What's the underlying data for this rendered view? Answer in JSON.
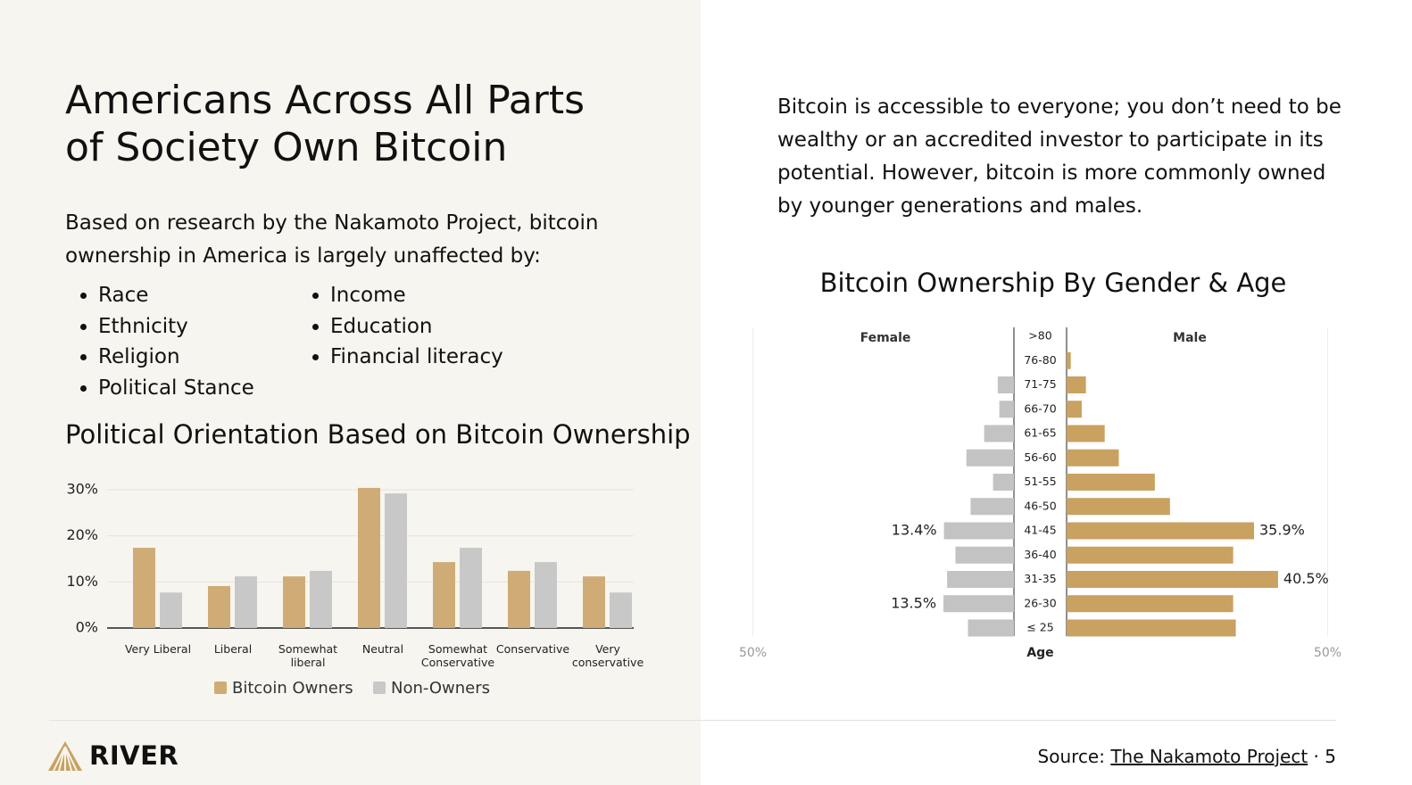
{
  "header": {
    "title": "Americans Across All Parts of Society Own Bitcoin",
    "intro": "Based on research by the Nakamoto Project, bitcoin ownership in America is largely unaffected by:",
    "right_text": "Bitcoin is accessible to everyone; you don’t need to be wealthy or an accredited investor to participate in its potential. However, bitcoin is more commonly owned by younger generations and males."
  },
  "bullets": [
    "Race",
    "Ethnicity",
    "Religion",
    "Political Stance",
    "Income",
    "Education",
    "Financial literacy"
  ],
  "chart_data": [
    {
      "type": "bar",
      "title": "Political Orientation Based on Bitcoin Ownership",
      "categories": [
        "Very Liberal",
        "Liberal",
        "Somewhat liberal",
        "Neutral",
        "Somewhat Conservative",
        "Conservative",
        "Very conservative"
      ],
      "series": [
        {
          "name": "Bitcoin Owners",
          "color": "#cfac76",
          "values": [
            17.4,
            9.1,
            11.2,
            30.4,
            14.3,
            12.4,
            11.2
          ]
        },
        {
          "name": "Non-Owners",
          "color": "#c8c8c8",
          "values": [
            7.7,
            11.2,
            12.4,
            29.2,
            17.4,
            14.3,
            7.7
          ]
        }
      ],
      "ylim": [
        0,
        30
      ],
      "yticks": [
        {
          "value": 0,
          "label": "0%"
        },
        {
          "value": 10,
          "label": "10%"
        },
        {
          "value": 20,
          "label": "20%"
        },
        {
          "value": 30,
          "label": "30%"
        }
      ],
      "grid": true
    },
    {
      "type": "pyramid",
      "title": "Bitcoin Ownership By Gender & Age",
      "categories": [
        ">80",
        "76-80",
        "71-75",
        "66-70",
        "61-65",
        "56-60",
        "51-55",
        "46-50",
        "41-45",
        "36-40",
        "31-35",
        "26-30",
        "≤ 25"
      ],
      "series": [
        {
          "name": "Female",
          "color": "#c3c3c3",
          "values": [
            0,
            0,
            3.1,
            2.8,
            5.7,
            9.1,
            4.0,
            8.3,
            13.4,
            11.2,
            12.8,
            13.5,
            8.8
          ],
          "value_labels": [
            null,
            null,
            null,
            null,
            null,
            null,
            null,
            null,
            "13.4%",
            null,
            null,
            "13.5%",
            null
          ]
        },
        {
          "name": "Male",
          "color": "#c9a160",
          "values": [
            0,
            0.8,
            3.7,
            2.9,
            7.3,
            10.0,
            16.9,
            19.8,
            35.9,
            31.9,
            40.5,
            31.9,
            32.4
          ],
          "value_labels": [
            null,
            null,
            null,
            null,
            null,
            null,
            null,
            null,
            "35.9%",
            null,
            "40.5%",
            null,
            null
          ]
        }
      ],
      "y_label": "Age",
      "xlim": [
        0,
        50
      ],
      "xticks": [
        {
          "value": 50,
          "label": "50%"
        }
      ],
      "grid": true
    }
  ],
  "footer": {
    "brand": "RIVER",
    "source_label": "Source:",
    "source_link": "The Nakamoto Project",
    "page": "5"
  }
}
